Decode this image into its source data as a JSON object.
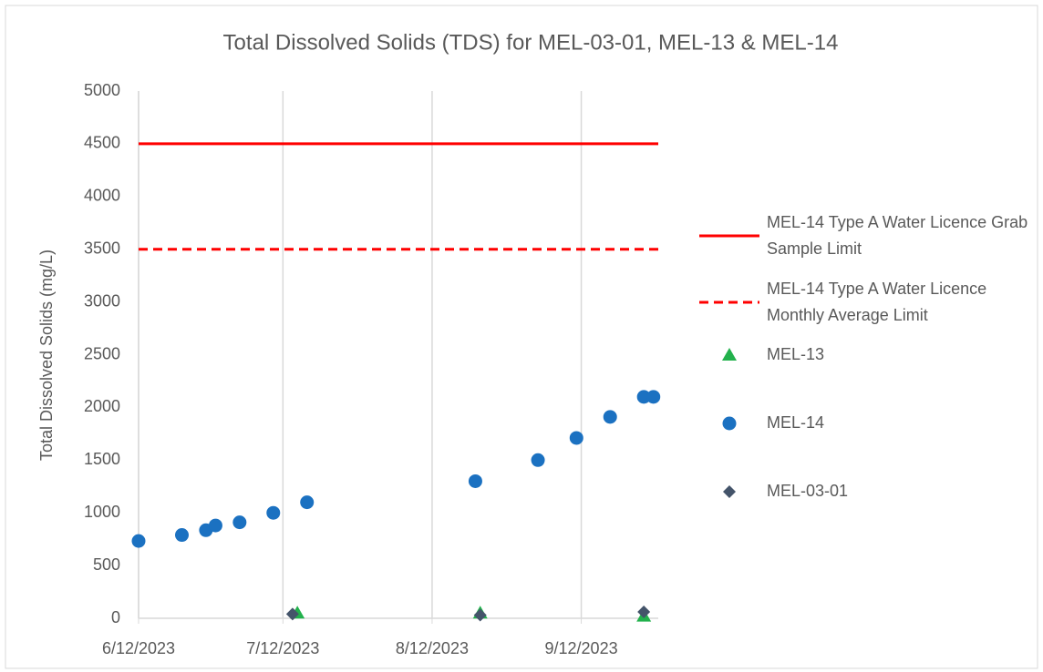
{
  "chart_data": {
    "type": "scatter",
    "title": "Total Dissolved Solids (TDS) for MEL-03-01, MEL-13 & MEL-14",
    "y_label": "Total Dissolved Solids (mg/L)",
    "xlim": [
      "2023-06-12",
      "2023-09-28"
    ],
    "xticks": [
      {
        "value": "2023-06-12",
        "label": "6/12/2023"
      },
      {
        "value": "2023-07-12",
        "label": "7/12/2023"
      },
      {
        "value": "2023-08-12",
        "label": "8/12/2023"
      },
      {
        "value": "2023-09-12",
        "label": "9/12/2023"
      }
    ],
    "ylim": [
      0,
      5000
    ],
    "yticks": [
      0,
      500,
      1000,
      1500,
      2000,
      2500,
      3000,
      3500,
      4000,
      4500,
      5000
    ],
    "grid": "x",
    "legend": "right",
    "series": [
      {
        "name": "MEL-14 Type A Water Licence Grab Sample Limit",
        "color": "#ff0000",
        "line_style": "solid",
        "x": [
          "2023-06-12",
          "2023-09-28"
        ],
        "values": [
          4500,
          4500
        ]
      },
      {
        "name": "MEL-14 Type A Water Licence Monthly Average Limit",
        "color": "#ff0000",
        "line_style": "dashed",
        "x": [
          "2023-06-12",
          "2023-09-28"
        ],
        "values": [
          3500,
          3500
        ]
      },
      {
        "name": "MEL-13",
        "color": "#22b14c",
        "marker": "triangle",
        "x": [
          "2023-07-15",
          "2023-08-22",
          "2023-09-25"
        ],
        "values": [
          50,
          50,
          20
        ]
      },
      {
        "name": "MEL-14",
        "color": "#1b71c1",
        "marker": "circle",
        "x": [
          "2023-06-12",
          "2023-06-21",
          "2023-06-26",
          "2023-06-28",
          "2023-07-03",
          "2023-07-10",
          "2023-07-17",
          "2023-08-21",
          "2023-09-03",
          "2023-09-11",
          "2023-09-18",
          "2023-09-25",
          "2023-09-27"
        ],
        "values": [
          733,
          790,
          835,
          880,
          910,
          1000,
          1100,
          1300,
          1500,
          1710,
          1910,
          2100,
          2100
        ]
      },
      {
        "name": "MEL-03-01",
        "color": "#44546a",
        "marker": "diamond",
        "x": [
          "2023-07-14",
          "2023-08-22",
          "2023-09-25"
        ],
        "values": [
          40,
          30,
          60
        ]
      }
    ]
  }
}
